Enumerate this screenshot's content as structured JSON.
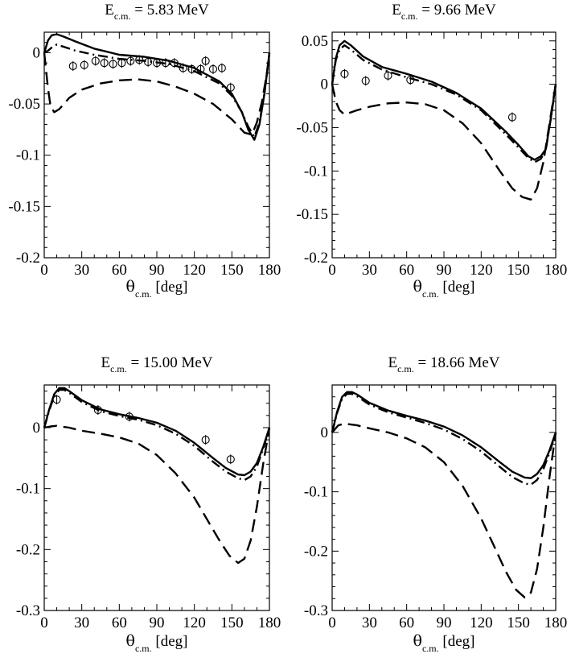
{
  "chart_data": [
    {
      "type": "line",
      "title_main": "E",
      "title_sub": "c.m.",
      "title_value": " = 5.83 MeV",
      "xlabel_main": "θ",
      "xlabel_sub": "c.m.",
      "xlabel_unit": " [deg]",
      "xlim": [
        0,
        180
      ],
      "ylim": [
        -0.2,
        0.02
      ],
      "xticks": [
        0,
        30,
        60,
        90,
        120,
        150,
        180
      ],
      "xtick_labels": [
        "0",
        "30",
        "60",
        "90",
        "120",
        "150",
        "180"
      ],
      "yticks": [
        0,
        -0.05,
        -0.1,
        -0.15,
        -0.2
      ],
      "ytick_labels": [
        "0",
        "-0.05",
        "-0.1",
        "-0.15",
        "-0.2"
      ],
      "series": [
        {
          "name": "solid",
          "style": "solid",
          "x": [
            0,
            3,
            6,
            10,
            15,
            25,
            40,
            60,
            80,
            100,
            120,
            140,
            150,
            158,
            163,
            168,
            172,
            176,
            180
          ],
          "y": [
            0,
            0.012,
            0.017,
            0.018,
            0.016,
            0.011,
            0.004,
            -0.002,
            -0.004,
            -0.008,
            -0.015,
            -0.028,
            -0.04,
            -0.058,
            -0.075,
            -0.085,
            -0.07,
            -0.04,
            0
          ]
        },
        {
          "name": "dash-dot",
          "style": "dashdot",
          "x": [
            0,
            3,
            6,
            10,
            15,
            25,
            40,
            60,
            80,
            100,
            120,
            140,
            150,
            158,
            163,
            168,
            172,
            176,
            180
          ],
          "y": [
            0,
            0.002,
            0.005,
            0.008,
            0.006,
            0.002,
            -0.002,
            -0.006,
            -0.008,
            -0.011,
            -0.018,
            -0.03,
            -0.042,
            -0.058,
            -0.072,
            -0.082,
            -0.068,
            -0.04,
            0
          ]
        },
        {
          "name": "dashed",
          "style": "dashed",
          "x": [
            0,
            3,
            5,
            8,
            12,
            20,
            30,
            45,
            60,
            75,
            90,
            105,
            120,
            135,
            150,
            160,
            166,
            170,
            174,
            178,
            180
          ],
          "y": [
            0,
            -0.035,
            -0.052,
            -0.058,
            -0.055,
            -0.044,
            -0.036,
            -0.03,
            -0.027,
            -0.026,
            -0.028,
            -0.033,
            -0.04,
            -0.05,
            -0.065,
            -0.078,
            -0.08,
            -0.068,
            -0.048,
            -0.02,
            0
          ]
        }
      ],
      "data_points": {
        "x": [
          23,
          32,
          41,
          48,
          55,
          62,
          69,
          76,
          83,
          90,
          97,
          104,
          111,
          118,
          125,
          129,
          135,
          142,
          149
        ],
        "y": [
          -0.013,
          -0.012,
          -0.008,
          -0.01,
          -0.011,
          -0.01,
          -0.008,
          -0.007,
          -0.009,
          -0.01,
          -0.01,
          -0.01,
          -0.015,
          -0.016,
          -0.016,
          -0.008,
          -0.016,
          -0.015,
          -0.034
        ]
      }
    },
    {
      "type": "line",
      "title_main": "E",
      "title_sub": "c.m.",
      "title_value": " = 9.66 MeV",
      "xlabel_main": "θ",
      "xlabel_sub": "c.m.",
      "xlabel_unit": " [deg]",
      "xlim": [
        0,
        180
      ],
      "ylim": [
        -0.2,
        0.06
      ],
      "xticks": [
        0,
        30,
        60,
        90,
        120,
        150,
        180
      ],
      "xtick_labels": [
        "0",
        "30",
        "60",
        "90",
        "120",
        "150",
        "180"
      ],
      "yticks": [
        0.05,
        0,
        -0.05,
        -0.1,
        -0.15,
        -0.2
      ],
      "ytick_labels": [
        "0.05",
        "0",
        "-0.05",
        "-0.1",
        "-0.15",
        "-0.2"
      ],
      "series": [
        {
          "name": "solid",
          "style": "solid",
          "x": [
            0,
            3,
            6,
            10,
            15,
            25,
            40,
            60,
            80,
            100,
            120,
            140,
            150,
            158,
            163,
            168,
            172,
            176,
            180
          ],
          "y": [
            0,
            0.03,
            0.045,
            0.05,
            0.045,
            0.032,
            0.02,
            0.012,
            0.003,
            -0.01,
            -0.028,
            -0.055,
            -0.07,
            -0.083,
            -0.087,
            -0.083,
            -0.075,
            -0.04,
            0
          ]
        },
        {
          "name": "dash-dot",
          "style": "dashdot",
          "x": [
            0,
            3,
            6,
            10,
            15,
            25,
            40,
            60,
            80,
            100,
            120,
            140,
            150,
            158,
            163,
            168,
            172,
            176,
            180
          ],
          "y": [
            0,
            0.028,
            0.04,
            0.045,
            0.04,
            0.028,
            0.017,
            0.008,
            0,
            -0.012,
            -0.03,
            -0.058,
            -0.073,
            -0.085,
            -0.09,
            -0.086,
            -0.076,
            -0.04,
            0
          ]
        },
        {
          "name": "dashed",
          "style": "dashed",
          "x": [
            0,
            3,
            6,
            10,
            20,
            30,
            45,
            60,
            75,
            90,
            105,
            120,
            135,
            145,
            153,
            160,
            165,
            170,
            175,
            180
          ],
          "y": [
            0,
            -0.02,
            -0.03,
            -0.035,
            -0.03,
            -0.026,
            -0.022,
            -0.021,
            -0.023,
            -0.03,
            -0.045,
            -0.068,
            -0.1,
            -0.12,
            -0.13,
            -0.133,
            -0.12,
            -0.09,
            -0.045,
            0
          ]
        }
      ],
      "data_points": {
        "x": [
          10,
          27,
          45,
          63,
          145
        ],
        "y": [
          0.012,
          0.004,
          0.01,
          0.005,
          -0.038
        ]
      }
    },
    {
      "type": "line",
      "title_main": "E",
      "title_sub": "c.m.",
      "title_value": " = 15.00 MeV",
      "xlabel_main": "θ",
      "xlabel_sub": "c.m.",
      "xlabel_unit": " [deg]",
      "xlim": [
        0,
        180
      ],
      "ylim": [
        -0.3,
        0.07
      ],
      "xticks": [
        0,
        30,
        60,
        90,
        120,
        150,
        180
      ],
      "xtick_labels": [
        "0",
        "30",
        "60",
        "90",
        "120",
        "150",
        "180"
      ],
      "yticks": [
        0,
        -0.1,
        -0.2,
        -0.3
      ],
      "ytick_labels": [
        "0",
        "-0.1",
        "-0.2",
        "-0.3"
      ],
      "series": [
        {
          "name": "solid",
          "style": "solid",
          "x": [
            0,
            4,
            8,
            12,
            16,
            20,
            30,
            45,
            60,
            75,
            90,
            105,
            120,
            135,
            145,
            155,
            160,
            165,
            170,
            175,
            180
          ],
          "y": [
            0,
            0.03,
            0.055,
            0.065,
            0.065,
            0.06,
            0.045,
            0.03,
            0.022,
            0.016,
            0.008,
            -0.005,
            -0.025,
            -0.05,
            -0.066,
            -0.077,
            -0.078,
            -0.072,
            -0.058,
            -0.032,
            0
          ]
        },
        {
          "name": "dash-dot",
          "style": "dashdot",
          "x": [
            0,
            4,
            8,
            12,
            16,
            20,
            30,
            45,
            60,
            75,
            90,
            105,
            120,
            135,
            145,
            155,
            160,
            165,
            170,
            175,
            180
          ],
          "y": [
            0,
            0.028,
            0.052,
            0.062,
            0.062,
            0.057,
            0.042,
            0.027,
            0.019,
            0.013,
            0.004,
            -0.01,
            -0.03,
            -0.056,
            -0.072,
            -0.083,
            -0.086,
            -0.08,
            -0.064,
            -0.035,
            0
          ]
        },
        {
          "name": "dashed",
          "style": "dashed",
          "x": [
            0,
            5,
            10,
            20,
            30,
            45,
            60,
            75,
            90,
            105,
            120,
            130,
            140,
            148,
            155,
            160,
            165,
            170,
            175,
            180
          ],
          "y": [
            0,
            0.002,
            0.003,
            0,
            -0.005,
            -0.01,
            -0.016,
            -0.026,
            -0.045,
            -0.075,
            -0.115,
            -0.15,
            -0.185,
            -0.21,
            -0.222,
            -0.215,
            -0.185,
            -0.13,
            -0.06,
            0
          ]
        }
      ],
      "data_points": {
        "x": [
          10,
          43,
          68,
          129,
          149
        ],
        "y": [
          0.046,
          0.029,
          0.018,
          -0.02,
          -0.052
        ]
      }
    },
    {
      "type": "line",
      "title_main": "E",
      "title_sub": "c.m.",
      "title_value": " = 18.66 MeV",
      "xlabel_main": "θ",
      "xlabel_sub": "c.m.",
      "xlabel_unit": " [deg]",
      "xlim": [
        0,
        180
      ],
      "ylim": [
        -0.3,
        0.08
      ],
      "xticks": [
        0,
        30,
        60,
        90,
        120,
        150,
        180
      ],
      "xtick_labels": [
        "0",
        "30",
        "60",
        "90",
        "120",
        "150",
        "180"
      ],
      "yticks": [
        0,
        -0.1,
        -0.2,
        -0.3
      ],
      "ytick_labels": [
        "0",
        "-0.1",
        "-0.2",
        "-0.3"
      ],
      "series": [
        {
          "name": "solid",
          "style": "solid",
          "x": [
            0,
            4,
            8,
            12,
            16,
            20,
            30,
            45,
            60,
            75,
            90,
            105,
            120,
            135,
            145,
            155,
            160,
            165,
            170,
            175,
            180
          ],
          "y": [
            0,
            0.035,
            0.06,
            0.068,
            0.068,
            0.064,
            0.05,
            0.037,
            0.028,
            0.02,
            0.01,
            -0.005,
            -0.025,
            -0.05,
            -0.066,
            -0.076,
            -0.077,
            -0.07,
            -0.055,
            -0.03,
            0
          ]
        },
        {
          "name": "dash-dot",
          "style": "dashdot",
          "x": [
            0,
            4,
            8,
            12,
            16,
            20,
            30,
            45,
            60,
            75,
            90,
            105,
            120,
            135,
            145,
            155,
            160,
            165,
            170,
            175,
            180
          ],
          "y": [
            0,
            0.033,
            0.057,
            0.065,
            0.065,
            0.061,
            0.047,
            0.034,
            0.025,
            0.016,
            0.005,
            -0.011,
            -0.032,
            -0.058,
            -0.075,
            -0.086,
            -0.088,
            -0.08,
            -0.062,
            -0.034,
            0
          ]
        },
        {
          "name": "dashed",
          "style": "dashed",
          "x": [
            0,
            5,
            10,
            20,
            30,
            45,
            60,
            75,
            90,
            105,
            120,
            130,
            140,
            148,
            155,
            160,
            165,
            170,
            175,
            180
          ],
          "y": [
            0,
            0.012,
            0.015,
            0.012,
            0.007,
            0,
            -0.01,
            -0.025,
            -0.05,
            -0.09,
            -0.145,
            -0.19,
            -0.235,
            -0.265,
            -0.278,
            -0.27,
            -0.23,
            -0.16,
            -0.075,
            0
          ]
        }
      ]
    }
  ]
}
